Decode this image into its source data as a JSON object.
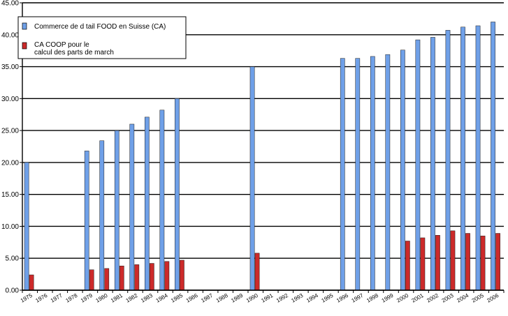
{
  "chart_data": {
    "type": "bar",
    "categories": [
      "1975",
      "1976",
      "1977",
      "1978",
      "1979",
      "1980",
      "1981",
      "1982",
      "1983",
      "1984",
      "1985",
      "1986",
      "1987",
      "1988",
      "1989",
      "1990",
      "1991",
      "1992",
      "1993",
      "1994",
      "1995",
      "1996",
      "1997",
      "1998",
      "1999",
      "2000",
      "2001",
      "2002",
      "2003",
      "2004",
      "2005",
      "2006"
    ],
    "series": [
      {
        "name": "Commerce de détail FOOD en Suisse (CA)",
        "legend_label": "Commerce de d  tail FOOD en Suisse (CA)",
        "color": "#6fa0e8",
        "values": [
          20.0,
          null,
          null,
          null,
          21.8,
          23.4,
          25.0,
          26.0,
          27.1,
          28.2,
          30.0,
          null,
          null,
          null,
          null,
          35.0,
          null,
          null,
          null,
          null,
          null,
          36.3,
          36.3,
          36.6,
          36.9,
          37.6,
          39.2,
          39.6,
          40.7,
          41.2,
          41.4,
          42.0
        ]
      },
      {
        "name": "CA COOP pour le calcul des parts de marché",
        "legend_label_lines": [
          "CA COOP pour le",
          "calcul des parts de march"
        ],
        "color": "#cc2a2a",
        "values": [
          2.4,
          null,
          null,
          null,
          3.2,
          3.4,
          3.8,
          4.0,
          4.2,
          4.5,
          4.7,
          null,
          null,
          null,
          null,
          5.8,
          null,
          null,
          null,
          null,
          null,
          null,
          null,
          null,
          null,
          7.7,
          8.2,
          8.6,
          9.3,
          8.9,
          8.5,
          8.9
        ]
      }
    ],
    "x_tick_labels": [
      "1975",
      "1976",
      "1977",
      "1978",
      "1979",
      "1980",
      "1981",
      "1982",
      "1983",
      "1984",
      "1985",
      "1986",
      "1987",
      "1988",
      "1989",
      "1990",
      "1991",
      "1992",
      "1993",
      "1994",
      "1995",
      "1996",
      "1997",
      "1998",
      "1999",
      "2000",
      "2001",
      "2002",
      "2003",
      "2004",
      "2005",
      "2006"
    ],
    "y_tick_labels": [
      "0.00",
      "5.00",
      "10.00",
      "15.00",
      "20.00",
      "25.00",
      "30.00",
      "35.00",
      "40.00",
      "45.00"
    ],
    "ylim": [
      0,
      45
    ],
    "ystep": 5,
    "grid": "horizontal",
    "legend_position": "top-left",
    "title": "",
    "xlabel": "",
    "ylabel": ""
  }
}
